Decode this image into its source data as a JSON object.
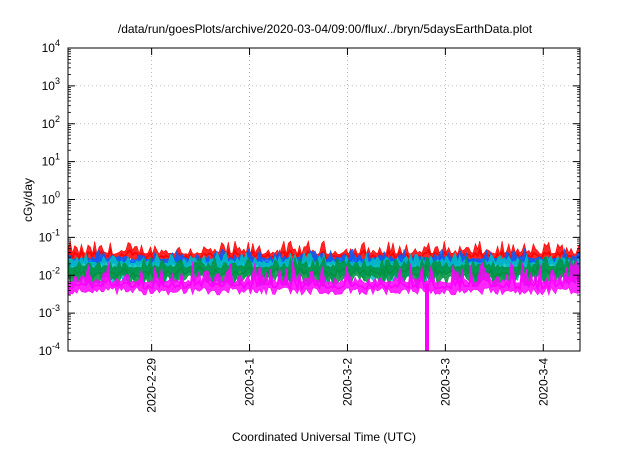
{
  "chart_data": {
    "type": "area",
    "title": "/data/run/goesPlots/archive/2020-03-04/09:00/flux/../bryn/5daysEarthData.plot",
    "xlabel": "Coordinated Universal Time (UTC)",
    "ylabel": "cGy/day",
    "yscale": "log",
    "ylim": [
      0.0001,
      10000
    ],
    "xlim": [
      "2020-02-28 03:30",
      "2020-03-04 09:00"
    ],
    "grid": true,
    "y_ticks": [
      {
        "base": "10",
        "exp": "-4",
        "value": 0.0001
      },
      {
        "base": "10",
        "exp": "-3",
        "value": 0.001
      },
      {
        "base": "10",
        "exp": "-2",
        "value": 0.01
      },
      {
        "base": "10",
        "exp": "-1",
        "value": 0.1
      },
      {
        "base": "10",
        "exp": "0",
        "value": 1
      },
      {
        "base": "10",
        "exp": "1",
        "value": 10
      },
      {
        "base": "10",
        "exp": "2",
        "value": 100
      },
      {
        "base": "10",
        "exp": "3",
        "value": 1000
      },
      {
        "base": "10",
        "exp": "4",
        "value": 10000
      }
    ],
    "x_ticks": [
      {
        "label": "2020-2-29",
        "date": "2020-02-29 00:00"
      },
      {
        "label": "2020-3-1",
        "date": "2020-03-01 00:00"
      },
      {
        "label": "2020-3-2",
        "date": "2020-03-02 00:00"
      },
      {
        "label": "2020-3-3",
        "date": "2020-03-03 00:00"
      },
      {
        "label": "2020-3-4",
        "date": "2020-03-04 00:00"
      }
    ],
    "series": [
      {
        "color": "#ff0000",
        "typical_value": 0.035,
        "min": 0.02,
        "max": 0.08
      },
      {
        "color": "#0060ff",
        "typical_value": 0.025,
        "min": 0.015,
        "max": 0.05
      },
      {
        "color": "#00c0c0",
        "typical_value": 0.02,
        "min": 0.006,
        "max": 0.04
      },
      {
        "color": "#009040",
        "typical_value": 0.015,
        "min": 0.005,
        "max": 0.03
      },
      {
        "color": "#ff00ff",
        "typical_value": 0.006,
        "min": 0.003,
        "max": 0.025,
        "dropout": {
          "date": "2020-03-02 19:30",
          "value": 0.0001
        }
      }
    ]
  }
}
